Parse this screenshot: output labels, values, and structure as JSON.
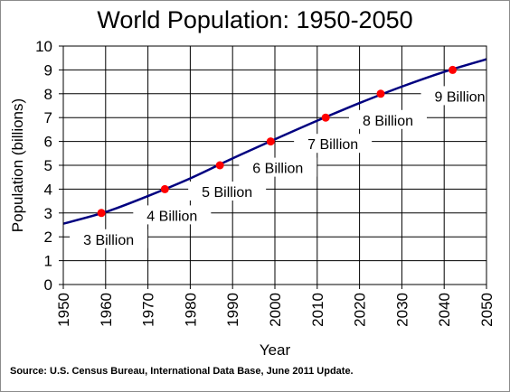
{
  "chart_data": {
    "type": "line",
    "title": "World Population: 1950-2050",
    "xlabel": "Year",
    "ylabel": "Population (billions)",
    "xlim": [
      1950,
      2050
    ],
    "ylim": [
      0,
      10
    ],
    "xticks": [
      1950,
      1960,
      1970,
      1980,
      1990,
      2000,
      2010,
      2020,
      2030,
      2040,
      2050
    ],
    "yticks": [
      0,
      1,
      2,
      3,
      4,
      5,
      6,
      7,
      8,
      9,
      10
    ],
    "grid": true,
    "series": [
      {
        "color": "#000080",
        "x": [
          1950,
          1960,
          1970,
          1980,
          1990,
          2000,
          2010,
          2020,
          2030,
          2040,
          2050
        ],
        "y": [
          2.55,
          3.04,
          3.71,
          4.45,
          5.29,
          6.09,
          6.87,
          7.61,
          8.3,
          8.92,
          9.45
        ]
      }
    ],
    "milestones": [
      {
        "year": 1959,
        "value": 3,
        "label": "3 Billion"
      },
      {
        "year": 1974,
        "value": 4,
        "label": "4 Billion"
      },
      {
        "year": 1987,
        "value": 5,
        "label": "5 Billion"
      },
      {
        "year": 1999,
        "value": 6,
        "label": "6 Billion"
      },
      {
        "year": 2012,
        "value": 7,
        "label": "7 Billion"
      },
      {
        "year": 2025,
        "value": 8,
        "label": "8 Billion"
      },
      {
        "year": 2042,
        "value": 9,
        "label": "9 Billion"
      }
    ],
    "marker_color": "#ff0000",
    "source": "Source: U.S. Census Bureau, International Data Base, June 2011 Update."
  }
}
